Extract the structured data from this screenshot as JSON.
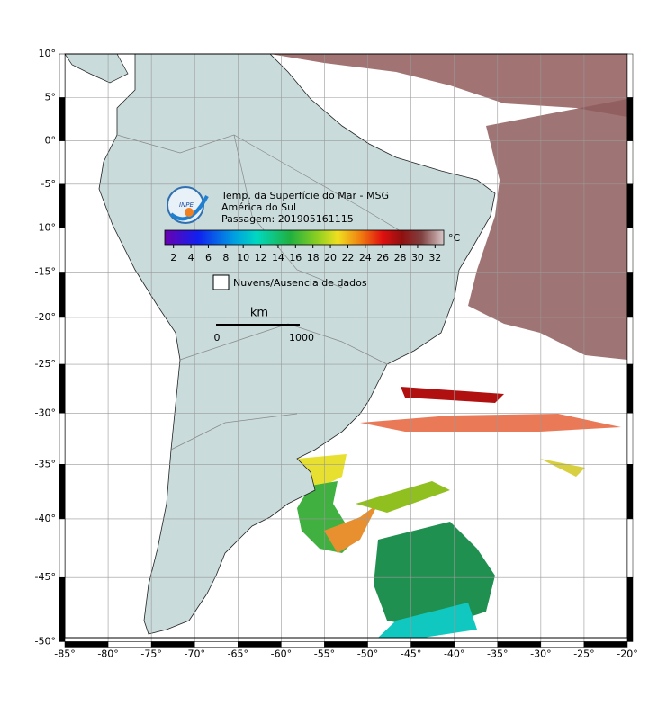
{
  "title_lines": [
    "Temp. da Superfície do Mar - MSG",
    "América do Sul",
    "Passagem: 201905161115"
  ],
  "colorbar": {
    "unit": "°C",
    "range": [
      1,
      33
    ],
    "ticks": [
      2,
      4,
      6,
      8,
      10,
      12,
      14,
      16,
      18,
      20,
      22,
      24,
      26,
      28,
      30,
      32
    ]
  },
  "legend": "Nuvens/Ausencia de dados",
  "scale": {
    "unit": "km",
    "ticks": [
      0,
      1000
    ]
  },
  "map": {
    "lon_ticks": [
      {
        "value": -85,
        "label": "-85°"
      },
      {
        "value": -80,
        "label": "-80°"
      },
      {
        "value": -75,
        "label": "-75°"
      },
      {
        "value": -70,
        "label": "-70°"
      },
      {
        "value": -65,
        "label": "-65°"
      },
      {
        "value": -60,
        "label": "-60°"
      },
      {
        "value": -55,
        "label": "-55°"
      },
      {
        "value": -50,
        "label": "-50°"
      },
      {
        "value": -45,
        "label": "-45°"
      },
      {
        "value": -40,
        "label": "-40°"
      },
      {
        "value": -35,
        "label": "-35°"
      },
      {
        "value": -30,
        "label": "-30°"
      },
      {
        "value": -25,
        "label": "-25°"
      },
      {
        "value": -20,
        "label": "-20°"
      }
    ],
    "lat_ticks": [
      {
        "value": 10,
        "label": "10°"
      },
      {
        "value": 5,
        "label": "5°"
      },
      {
        "value": 0,
        "label": "0°"
      },
      {
        "value": -5,
        "label": "-5°"
      },
      {
        "value": -10,
        "label": "-10°"
      },
      {
        "value": -15,
        "label": "-15°"
      },
      {
        "value": -20,
        "label": "-20°"
      },
      {
        "value": -25,
        "label": "-25°"
      },
      {
        "value": -30,
        "label": "-30°"
      },
      {
        "value": -35,
        "label": "-35°"
      },
      {
        "value": -40,
        "label": "-40°"
      },
      {
        "value": -45,
        "label": "-45°"
      },
      {
        "value": -50,
        "label": "-50°"
      }
    ]
  }
}
